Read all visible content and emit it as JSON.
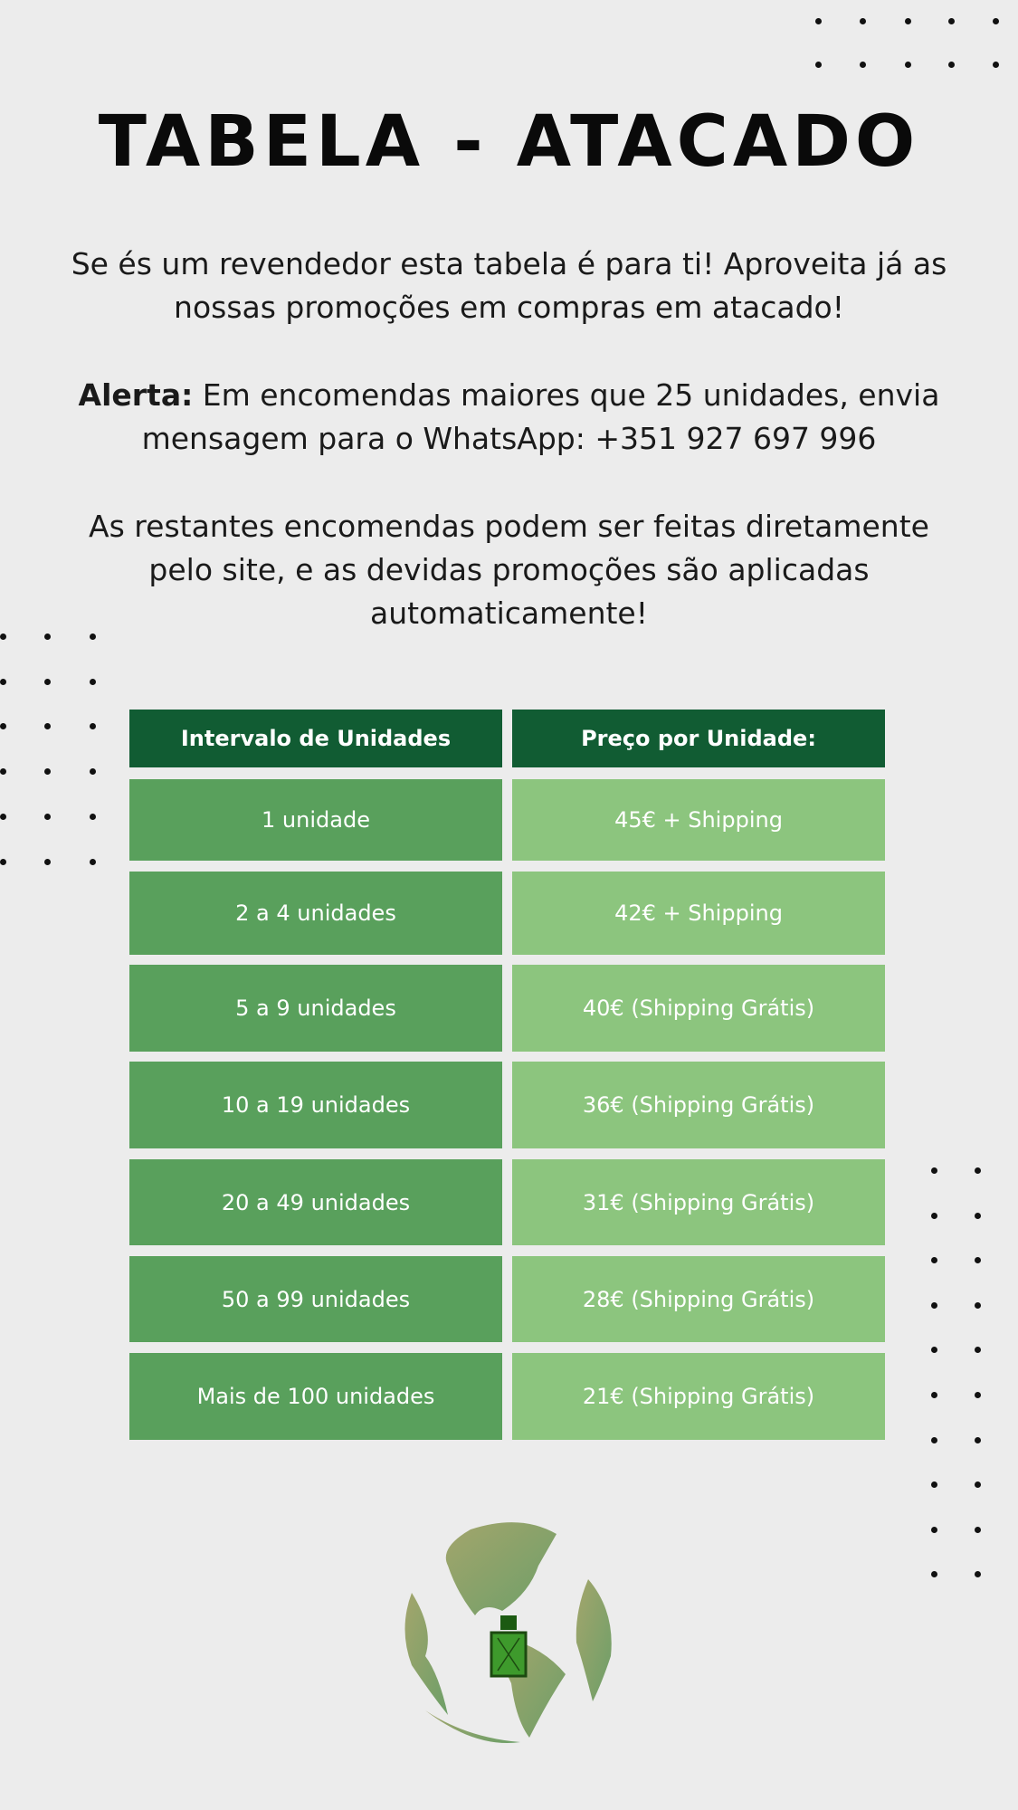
{
  "title": "TABELA - ATACADO",
  "intro": "Se és um revendedor esta tabela é para ti! Aproveita já as nossas promoções em compras em atacado!",
  "alert": {
    "label": "Alerta:",
    "text": " Em encomendas maiores que 25 unidades, envia mensagem para o WhatsApp: +351 927 697 996"
  },
  "note": "As restantes encomendas podem ser feitas diretamente pelo site, e as devidas promoções são aplicadas automaticamente!",
  "table": {
    "headers": [
      "Intervalo de Unidades",
      "Preço por Unidade:"
    ],
    "rows": [
      [
        "1 unidade",
        "45€ + Shipping"
      ],
      [
        "2 a 4 unidades",
        "42€ + Shipping"
      ],
      [
        "5 a 9 unidades",
        "40€ (Shipping Grátis)"
      ],
      [
        "10 a 19 unidades",
        "36€ (Shipping Grátis)"
      ],
      [
        "20 a 49 unidades",
        "31€ (Shipping Grátis)"
      ],
      [
        "50 a 99 unidades",
        "28€ (Shipping Grátis)"
      ],
      [
        "Mais de 100 unidades",
        "21€ (Shipping Grátis)"
      ]
    ]
  },
  "colors": {
    "header": "#115c33",
    "col1": "#59a05c",
    "col2": "#8cc57e",
    "background": "#ececec"
  },
  "logo": "globe-with-perfume-bottle-icon"
}
